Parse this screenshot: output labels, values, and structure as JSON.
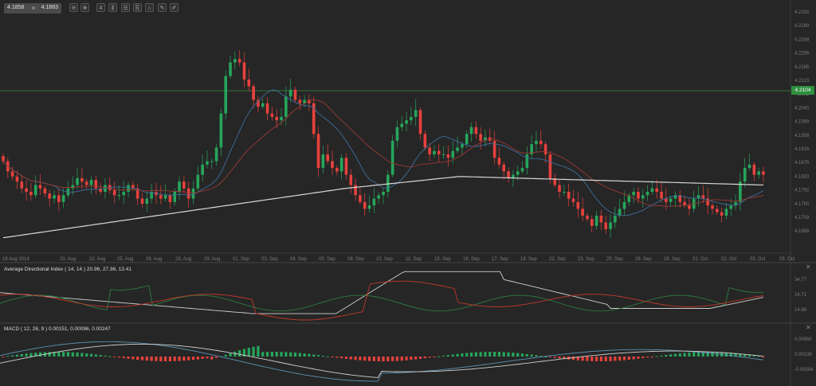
{
  "toolbar": {
    "bid": "4.1858",
    "ask": "4.1883",
    "buttons": [
      {
        "name": "zoom-out-icon",
        "glyph": "⊖"
      },
      {
        "name": "zoom-in-icon",
        "glyph": "⊕"
      },
      {
        "name": "timeframe-icon",
        "glyph": "4"
      },
      {
        "name": "candle-type-icon",
        "glyph": "⫼"
      },
      {
        "name": "indicators-icon",
        "glyph": "☰"
      },
      {
        "name": "template-icon",
        "glyph": "⎘"
      },
      {
        "name": "tag-icon",
        "glyph": "⌂"
      },
      {
        "name": "draw-line-icon",
        "glyph": "✎"
      },
      {
        "name": "eraser-icon",
        "glyph": "✐"
      }
    ]
  },
  "current_price": "4.2104",
  "colors": {
    "background": "#262626",
    "bull": "#26a65b",
    "bear": "#e8413c",
    "ma_fast": "#3d6e9e",
    "ma_mid": "#9a3a34",
    "ma_slow": "#d8d8d8",
    "hline": "#3c8a3c",
    "adx": "#cfcfcf",
    "di_plus": "#2f7a3f",
    "di_minus": "#c0392b",
    "macd_line": "#5c93b5",
    "signal_line": "#d0d0d0"
  },
  "adx_pane": {
    "title": "Average Directional Index ( 14, 14 ) 20.96, 27.36, 13.41",
    "y_labels": [
      "34.77",
      "24.71",
      "14.66"
    ]
  },
  "macd_pane": {
    "title": "MACD ( 12, 26, 9 ) 0.00151, 0.00096, 0.00247",
    "y_labels": [
      "0.00560",
      "0.00138",
      "-0.00284"
    ]
  },
  "chart_data": [
    {
      "type": "candlestick",
      "title": "Main price chart",
      "y_labels": [
        "4.2330",
        "4.2289",
        "4.2248",
        "4.2206",
        "4.2165",
        "4.2123",
        "4.2082",
        "4.2040",
        "4.1999",
        "4.1958",
        "4.1916",
        "4.1875",
        "4.1833",
        "4.1792",
        "4.1750",
        "4.1709",
        "4.1668"
      ],
      "x_labels": [
        "18 Aug 2014",
        "20. Aug",
        "22. Aug",
        "25. Aug",
        "26. Aug",
        "28. Aug",
        "29. Aug",
        "01. Sep",
        "03. Sep",
        "04. Sep",
        "05. Sep",
        "08. Sep",
        "10. Sep",
        "11. Sep",
        "15. Sep",
        "16. Sep",
        "17. Sep",
        "19. Sep",
        "22. Sep",
        "23. Sep",
        "25. Sep",
        "26. Sep",
        "29. Sep",
        "01. Oct",
        "02. Oct",
        "03. Oct",
        "05. Oct"
      ],
      "horizontal_line": 4.2104,
      "ylim": [
        4.163,
        4.235
      ],
      "series": [
        "price candles",
        "MA fast (blue)",
        "MA mid (red)",
        "MA slow (white)"
      ]
    },
    {
      "type": "line",
      "title": "Average Directional Index ( 14, 14 ) 20.96, 27.36, 13.41",
      "series": [
        {
          "name": "ADX",
          "last": 20.96
        },
        {
          "name": "+DI",
          "last": 27.36
        },
        {
          "name": "-DI",
          "last": 13.41
        }
      ],
      "y_ticks": [
        34.77,
        24.71,
        14.66
      ]
    },
    {
      "type": "bar+line",
      "title": "MACD ( 12, 26, 9 ) 0.00151, 0.00096, 0.00247",
      "series": [
        {
          "name": "MACD",
          "last": 0.00151
        },
        {
          "name": "Signal",
          "last": 0.00096
        },
        {
          "name": "Histogram",
          "last": 0.00247
        }
      ],
      "y_ticks": [
        0.0056,
        0.00138,
        -0.00284
      ]
    }
  ]
}
